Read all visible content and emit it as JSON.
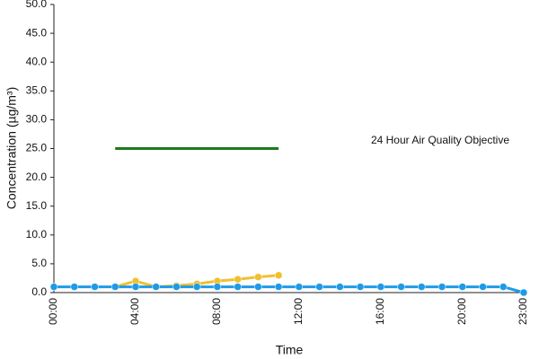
{
  "chart_data": {
    "type": "line",
    "y_label": "Concentration (µg/m³)",
    "x_label": "Time",
    "annotations": [
      "24 Hour Air Quality Objective"
    ],
    "categories": [
      "00:00",
      null,
      null,
      null,
      "04:00",
      null,
      null,
      null,
      "08:00",
      null,
      null,
      null,
      "12:00",
      null,
      null,
      null,
      "16:00",
      null,
      null,
      null,
      "20:00",
      null,
      null,
      "23:00"
    ],
    "series": [
      {
        "color": "#1a7a1a",
        "markers": false,
        "values": [
          null,
          null,
          null,
          25,
          25,
          25,
          25,
          25,
          25,
          25,
          25,
          25,
          null,
          null,
          null,
          null,
          null,
          null,
          null,
          null,
          null,
          null,
          null,
          null
        ]
      },
      {
        "color": "#f0c030",
        "markers": true,
        "values": [
          null,
          null,
          null,
          1.0,
          2.0,
          1.0,
          1.2,
          1.5,
          2.0,
          2.3,
          2.7,
          3.0,
          null,
          null,
          null,
          null,
          null,
          null,
          null,
          null,
          null,
          null,
          null,
          null
        ]
      },
      {
        "color": "#1e9be8",
        "markers": true,
        "values": [
          1.0,
          1.0,
          1.0,
          1.0,
          1.0,
          1.0,
          1.0,
          1.0,
          1.0,
          1.0,
          1.0,
          1.0,
          1.0,
          1.0,
          1.0,
          1.0,
          1.0,
          1.0,
          1.0,
          1.0,
          1.0,
          1.0,
          1.0,
          0
        ]
      }
    ],
    "ylim": [
      0,
      50
    ],
    "yticks": [
      {
        "value": 0,
        "label": "0.0"
      },
      {
        "value": 5,
        "label": "5.0"
      },
      {
        "value": 10,
        "label": "10.0"
      },
      {
        "value": 15,
        "label": "15.0"
      },
      {
        "value": 20,
        "label": "20.0"
      },
      {
        "value": 25,
        "label": "25.0"
      },
      {
        "value": 30,
        "label": "30.0"
      },
      {
        "value": 35,
        "label": "35.0"
      },
      {
        "value": 40,
        "label": "40.0"
      },
      {
        "value": 45,
        "label": "45.0"
      },
      {
        "value": 50,
        "label": "50.0"
      }
    ],
    "grid": false
  }
}
